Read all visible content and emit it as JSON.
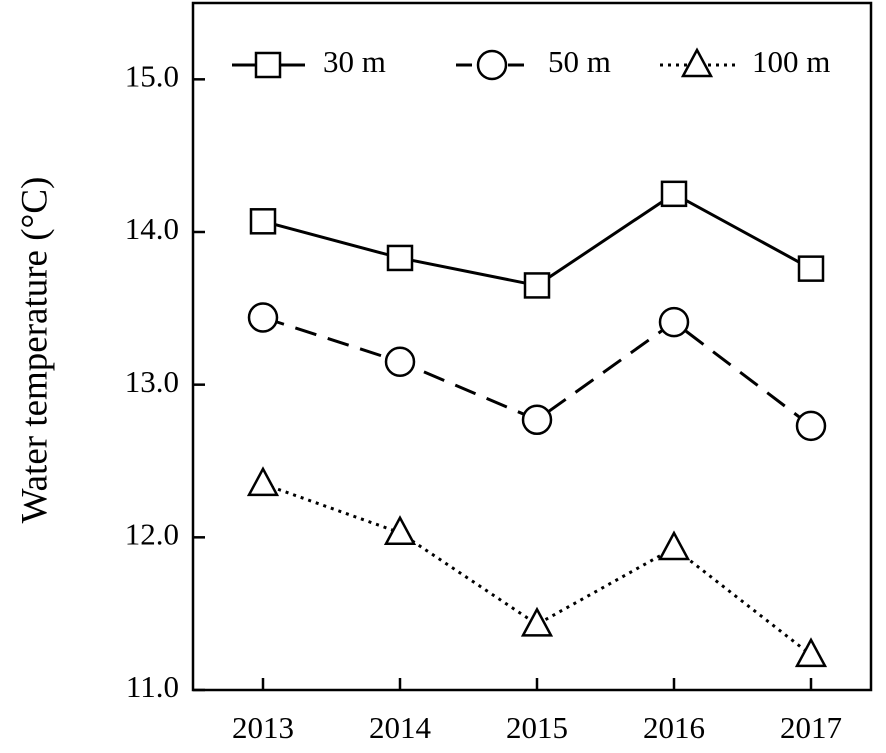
{
  "chart_data": {
    "type": "line",
    "ylabel": "Water temperature (°C)",
    "xlabel": "",
    "categories": [
      "2013",
      "2014",
      "2015",
      "2016",
      "2017"
    ],
    "ylim": [
      11.0,
      15.5
    ],
    "yticks": [
      11.0,
      12.0,
      13.0,
      14.0,
      15.0
    ],
    "ytick_labels": [
      "11.0",
      "12.0",
      "13.0",
      "14.0",
      "15.0"
    ],
    "grid": false,
    "legend_position": "top",
    "series": [
      {
        "name": "30 m",
        "marker": "square",
        "dash": "solid",
        "values": [
          14.07,
          13.83,
          13.65,
          14.25,
          13.76
        ]
      },
      {
        "name": "50 m",
        "marker": "circle",
        "dash": "dashed",
        "values": [
          13.44,
          13.15,
          12.77,
          13.41,
          12.73
        ]
      },
      {
        "name": "100 m",
        "marker": "triangle",
        "dash": "dotted",
        "values": [
          12.35,
          12.03,
          11.43,
          11.93,
          11.23
        ]
      }
    ],
    "colors": {
      "line": "#000000",
      "marker_fill": "#ffffff",
      "background": "#ffffff"
    }
  }
}
